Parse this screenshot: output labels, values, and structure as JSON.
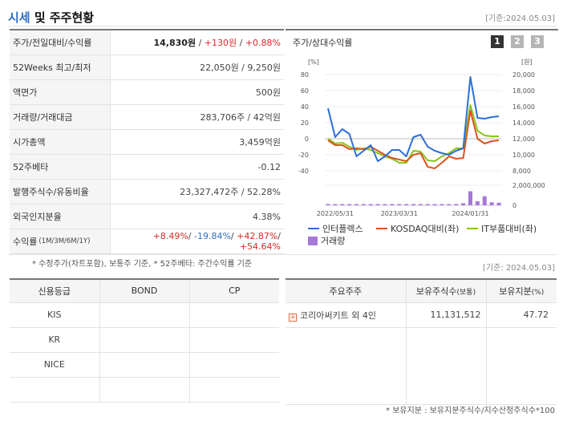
{
  "header": {
    "title_hl": "시세",
    "title_rest": " 및 주주현황",
    "date": "[기준:2024.05.03]"
  },
  "stats": {
    "price_label": "주가/전일대비/수익률",
    "price": "14,830원",
    "change": "+130원",
    "change_pct": "+0.88%",
    "weeks52_label": "52Weeks 최고/최저",
    "weeks52": "22,050원 / 9,250원",
    "par_label": "액면가",
    "par": "500원",
    "volume_label": "거래량/거래대금",
    "volume": "283,706주 / 42억원",
    "mcap_label": "시가총액",
    "mcap": "3,459억원",
    "beta_label": "52주베타",
    "beta": "-0.12",
    "shares_label": "발행주식수/유동비율",
    "shares": "23,327,472주 / 52.28%",
    "foreign_label": "외국인지분율",
    "foreign": "4.38%",
    "returns_label": "수익률",
    "returns_period": "(1M/3M/6M/1Y)",
    "r1m": "+8.49%",
    "r3m": "-19.84%",
    "r6m": "+42.87%",
    "r1y": "+54.64%",
    "sep": "/ ",
    "note": "* 수정주가(차트포함), 보통주 기준, * 52주베타: 주간수익률 기준"
  },
  "chart_panel": {
    "title": "주가/상대수익률",
    "pages": [
      "1",
      "2",
      "3"
    ],
    "legend": [
      "인터플렉스",
      "KOSDAQ대비(좌)",
      "IT부품대비(좌)",
      "거래량"
    ]
  },
  "colors": {
    "series1": "#2d6fd6",
    "series2": "#d9541f",
    "series3": "#8cc21b",
    "volume": "#a678d8"
  },
  "chart_data": {
    "type": "line",
    "x_ticks": [
      "2022/05/31",
      "2023/03/31",
      "2024/01/31"
    ],
    "left_axis": {
      "unit": "[%]",
      "ticks": [
        "80",
        "60",
        "40",
        "20",
        "0",
        "-20",
        "-40"
      ],
      "range": [
        -40,
        80
      ]
    },
    "right_axis": {
      "unit": "[원]",
      "ticks": [
        "20,000",
        "18,000",
        "16,000",
        "14,000",
        "12,000",
        "10,000",
        "8,000"
      ],
      "range": [
        8000,
        20000
      ]
    },
    "volume_axis": {
      "ticks": [
        "2,000,000",
        "0"
      ],
      "range": [
        0,
        2000000
      ]
    },
    "series": [
      {
        "name": "인터플렉스",
        "values": [
          38,
          2,
          12,
          6,
          -22,
          -15,
          -8,
          -28,
          -22,
          -14,
          -14,
          -22,
          2,
          5,
          -10,
          -15,
          -18,
          -20,
          -15,
          -12,
          77,
          26,
          25,
          27,
          28
        ]
      },
      {
        "name": "KOSDAQ대비(좌)",
        "values": [
          -2,
          -8,
          -8,
          -13,
          -12,
          -13,
          -10,
          -15,
          -20,
          -24,
          -26,
          -28,
          -20,
          -18,
          -35,
          -37,
          -30,
          -22,
          -25,
          -24,
          35,
          0,
          -6,
          -3,
          -2
        ]
      },
      {
        "name": "IT부품대비(좌)",
        "values": [
          0,
          -6,
          -5,
          -10,
          -14,
          -12,
          -14,
          -18,
          -22,
          -25,
          -30,
          -30,
          -15,
          -16,
          -27,
          -28,
          -22,
          -18,
          -12,
          -12,
          42,
          10,
          4,
          3,
          3
        ]
      }
    ],
    "volume": [
      60000,
      80000,
      50000,
      40000,
      30000,
      40000,
      30000,
      50000,
      40000,
      60000,
      70000,
      50000,
      90000,
      60000,
      40000,
      30000,
      30000,
      80000,
      120000,
      200000,
      1400000,
      400000,
      900000,
      300000,
      250000
    ]
  },
  "credit": {
    "headers": [
      "신용등급",
      "BOND",
      "CP"
    ],
    "rows": [
      [
        "KIS",
        "",
        ""
      ],
      [
        "KR",
        "",
        ""
      ],
      [
        "NICE",
        "",
        ""
      ],
      [
        "",
        "",
        ""
      ]
    ]
  },
  "holders": {
    "date": "[기준: 2024.05.03]",
    "h1": "주요주주",
    "h2": "보유주식수",
    "h2s": "(보통)",
    "h3": "보유지분",
    "h3s": "(%)",
    "row1_name": "코리아써키트 외 4인",
    "row1_shares": "11,131,512",
    "row1_pct": "47.72",
    "note": "* 보유지분 : 보유지분주식수/지수산정주식수*100"
  }
}
